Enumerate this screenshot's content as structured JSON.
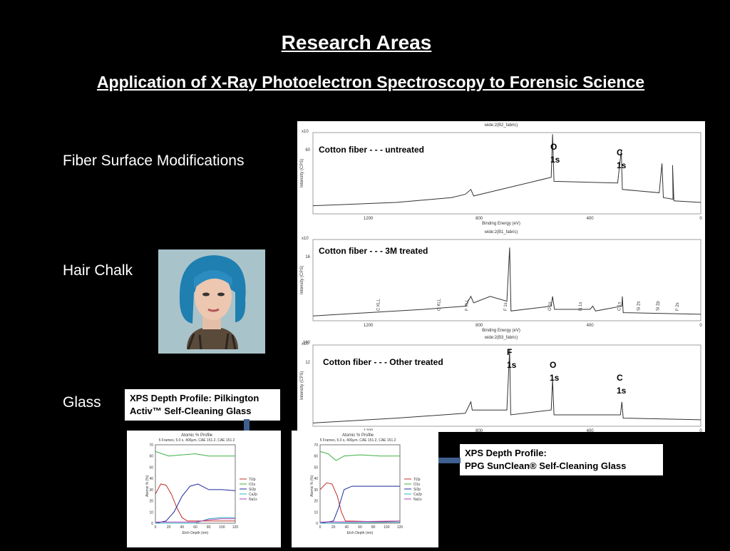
{
  "slide": {
    "title": "Research Areas",
    "subtitle": "Application of X-Ray Photoelectron Spectroscopy to Forensic Science"
  },
  "labels": {
    "fiber": "Fiber Surface Modifications",
    "hair": "Hair Chalk",
    "glass": "Glass"
  },
  "spectra": {
    "panels": [
      {
        "header": "wide:2(B2_fabric)",
        "annotation": "Cotton fiber - - - untreated",
        "ytick": "60",
        "peaks": [
          {
            "line1": "O",
            "line2": "1s"
          },
          {
            "line1": "C",
            "line2": "1s"
          }
        ]
      },
      {
        "header": "wide:2(B1_fabric)",
        "annotation": "Cotton fiber - - - 3M treated",
        "ytick": "16",
        "peaks_small": [
          "C KLL",
          "O KLL",
          "F KLL",
          "F 1s",
          "O 1s",
          "N 1s",
          "C 1s",
          "Si 2s",
          "Si 2p",
          "F 2s"
        ]
      },
      {
        "header": "wide:2(B3_fabric)",
        "annotation": "Cotton fiber - - -  Other treated",
        "ytick": "12",
        "ytick_top": "160",
        "peaks": [
          {
            "line1": "F",
            "line2": "1s"
          },
          {
            "line1": "O",
            "line2": "1s"
          },
          {
            "line1": "C",
            "line2": "1s"
          }
        ]
      }
    ],
    "xticks": [
      "1200",
      "800",
      "400",
      "0"
    ],
    "xlabel": "Binding Energy (eV)",
    "ylabel": "Intensity (CPS)",
    "exponent": "x10"
  },
  "callouts": {
    "pilkington": {
      "line1": "XPS Depth Profile: Pilkington",
      "line2": "Activ™  Self-Cleaning  Glass"
    },
    "ppg": {
      "line1": "XPS Depth Profile:",
      "line2": "PPG SunClean®  Self-Cleaning  Glass"
    }
  },
  "profiles": [
    {
      "title": "Atomic % Profile",
      "subtitle": "5 Frames,  5.0 s,  400μm,  CAE 151.2,  CAE 151.2",
      "xlabel": "Etch Depth (nm)",
      "ylabel": "Atomic % (%)",
      "xticks": [
        "0",
        "20",
        "40",
        "60",
        "80",
        "100",
        "120"
      ],
      "yticks": [
        "0",
        "10",
        "20",
        "30",
        "40",
        "50",
        "60",
        "70"
      ],
      "legend": [
        "Ti2p",
        "O1s",
        "Si2p",
        "Ca2p",
        "Na1s"
      ]
    },
    {
      "title": "Atomic % Profile",
      "subtitle": "5 Frames,  5.0 s,  400μm,  CAE 151.2,  CAE 151.2",
      "xlabel": "Etch Depth (nm)",
      "ylabel": "Atomic % (%)",
      "xticks": [
        "0",
        "20",
        "40",
        "60",
        "80",
        "100",
        "120"
      ],
      "yticks": [
        "0",
        "10",
        "20",
        "30",
        "40",
        "50",
        "60",
        "70"
      ],
      "legend": [
        "Ti2p",
        "O1s",
        "Si2p",
        "Ca2p",
        "Na1s"
      ]
    }
  ],
  "colors": {
    "background": "#000000",
    "text": "#ffffff",
    "arrow": "#3f5f8f",
    "ti": "#c0302a",
    "o": "#3cb043",
    "si": "#1f2a9a",
    "ca": "#2fb5c4",
    "na": "#b040b0"
  }
}
